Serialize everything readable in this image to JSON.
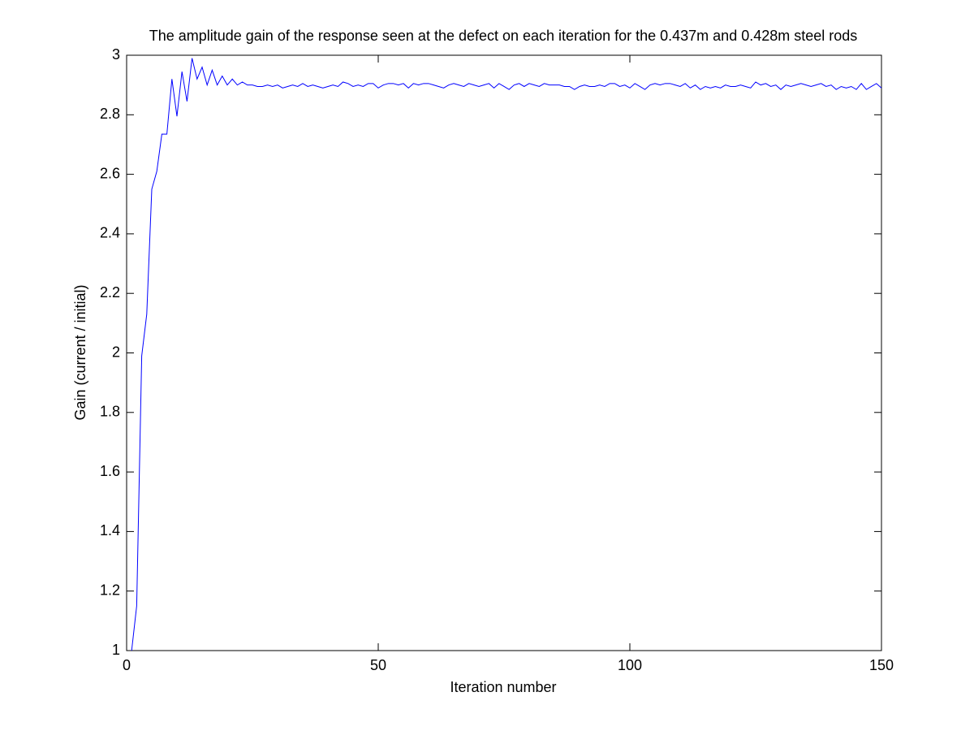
{
  "chart_data": {
    "type": "line",
    "title": "The amplitude gain of the response seen at the defect on each iteration for the 0.437m and 0.428m steel rods",
    "x_label": "Iteration number",
    "y_label": "Gain (current / initial)",
    "color": "#0000ff",
    "xlim": [
      0,
      150
    ],
    "xticks": [
      0,
      50,
      100,
      150
    ],
    "ylim": [
      1,
      3
    ],
    "yticks": [
      1,
      1.2,
      1.4,
      1.6,
      1.8,
      2,
      2.2,
      2.4,
      2.6,
      2.8,
      3
    ],
    "x": [
      1,
      2,
      3,
      4,
      5,
      6,
      7,
      8,
      9,
      10,
      11,
      12,
      13,
      14,
      15,
      16,
      17,
      18,
      19,
      20,
      21,
      22,
      23,
      24,
      25,
      26,
      27,
      28,
      29,
      30,
      31,
      32,
      33,
      34,
      35,
      36,
      37,
      38,
      39,
      40,
      41,
      42,
      43,
      44,
      45,
      46,
      47,
      48,
      49,
      50,
      51,
      52,
      53,
      54,
      55,
      56,
      57,
      58,
      59,
      60,
      61,
      62,
      63,
      64,
      65,
      66,
      67,
      68,
      69,
      70,
      71,
      72,
      73,
      74,
      75,
      76,
      77,
      78,
      79,
      80,
      81,
      82,
      83,
      84,
      85,
      86,
      87,
      88,
      89,
      90,
      91,
      92,
      93,
      94,
      95,
      96,
      97,
      98,
      99,
      100,
      101,
      102,
      103,
      104,
      105,
      106,
      107,
      108,
      109,
      110,
      111,
      112,
      113,
      114,
      115,
      116,
      117,
      118,
      119,
      120,
      121,
      122,
      123,
      124,
      125,
      126,
      127,
      128,
      129,
      130,
      131,
      132,
      133,
      134,
      135,
      136,
      137,
      138,
      139,
      140,
      141,
      142,
      143,
      144,
      145,
      146,
      147,
      148,
      149,
      150
    ],
    "values": [
      1.0,
      1.15,
      1.99,
      2.13,
      2.55,
      2.61,
      2.735,
      2.735,
      2.92,
      2.795,
      2.945,
      2.845,
      2.99,
      2.92,
      2.96,
      2.9,
      2.95,
      2.9,
      2.93,
      2.9,
      2.92,
      2.9,
      2.91,
      2.9,
      2.9,
      2.895,
      2.895,
      2.9,
      2.895,
      2.9,
      2.89,
      2.895,
      2.9,
      2.895,
      2.905,
      2.895,
      2.9,
      2.895,
      2.89,
      2.895,
      2.9,
      2.895,
      2.91,
      2.905,
      2.895,
      2.9,
      2.895,
      2.905,
      2.905,
      2.89,
      2.9,
      2.905,
      2.905,
      2.9,
      2.905,
      2.89,
      2.905,
      2.9,
      2.905,
      2.905,
      2.9,
      2.895,
      2.89,
      2.9,
      2.905,
      2.9,
      2.895,
      2.905,
      2.9,
      2.895,
      2.9,
      2.905,
      2.89,
      2.905,
      2.895,
      2.885,
      2.9,
      2.905,
      2.895,
      2.905,
      2.9,
      2.895,
      2.905,
      2.9,
      2.9,
      2.9,
      2.895,
      2.895,
      2.885,
      2.895,
      2.9,
      2.895,
      2.895,
      2.9,
      2.895,
      2.905,
      2.905,
      2.895,
      2.9,
      2.89,
      2.905,
      2.895,
      2.885,
      2.9,
      2.905,
      2.9,
      2.905,
      2.905,
      2.9,
      2.895,
      2.905,
      2.89,
      2.9,
      2.885,
      2.895,
      2.89,
      2.895,
      2.89,
      2.9,
      2.895,
      2.895,
      2.9,
      2.895,
      2.89,
      2.91,
      2.9,
      2.905,
      2.895,
      2.9,
      2.885,
      2.9,
      2.895,
      2.9,
      2.905,
      2.9,
      2.895,
      2.9,
      2.905,
      2.895,
      2.9,
      2.885,
      2.895,
      2.89,
      2.895,
      2.885,
      2.905,
      2.885,
      2.895,
      2.905,
      2.89
    ]
  }
}
